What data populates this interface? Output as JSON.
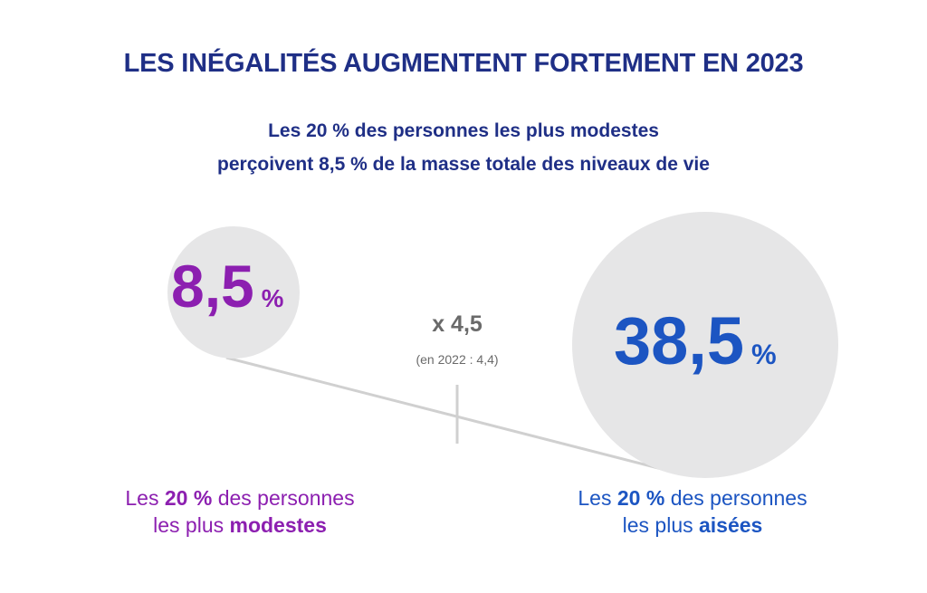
{
  "title": "LES INÉGALITÉS AUGMENTENT FORTEMENT EN 2023",
  "subtitle": {
    "line1": "Les 20 % des personnes les plus modestes",
    "line2": "perçoivent 8,5 % de la masse totale des niveaux de vie"
  },
  "modestes": {
    "value": "8,5",
    "unit": "%",
    "label_pre": "Les ",
    "label_bold1": "20 %",
    "label_mid": " des personnes",
    "label_line2_pre": "les plus ",
    "label_bold2": "modestes",
    "color": "#8c1fb0"
  },
  "aisees": {
    "value": "38,5",
    "unit": "%",
    "label_pre": "Les ",
    "label_bold1": "20 %",
    "label_mid": " des personnes",
    "label_line2_pre": "les plus ",
    "label_bold2": "aisées",
    "color": "#1c55c2"
  },
  "ratio": {
    "value": "x 4,5",
    "note": "(en 2022 : 4,4)"
  },
  "colors": {
    "title": "#1f2f86",
    "circle": "#e6e6e7",
    "connector": "#d0d0d0",
    "ratio": "#6a6a6a"
  }
}
